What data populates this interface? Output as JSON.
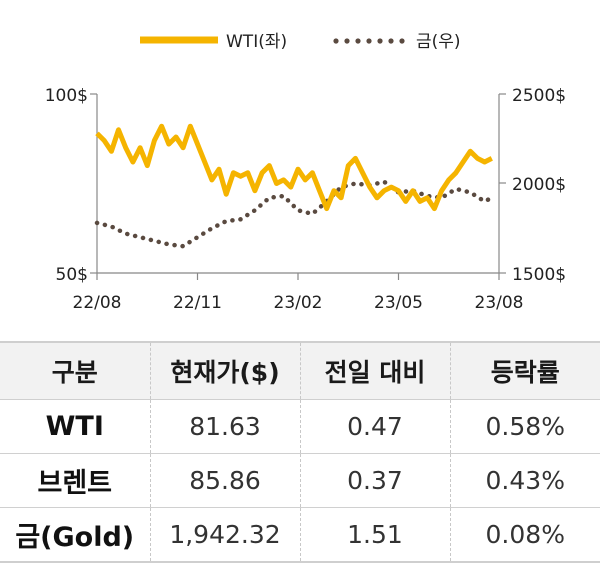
{
  "chart_data": {
    "type": "line",
    "legend": [
      "WTI(좌)",
      "금(우)"
    ],
    "x_ticks": [
      "22/08",
      "22/11",
      "23/02",
      "23/05",
      "23/08"
    ],
    "y_left": {
      "ticks": [
        "100$",
        "50$"
      ],
      "range": [
        50,
        100
      ]
    },
    "y_right": {
      "ticks": [
        "2500$",
        "2000$",
        "1500$"
      ],
      "range": [
        1500,
        2500
      ]
    },
    "colors": {
      "wti": "#f5b400",
      "gold": "#5a4a40"
    },
    "series": [
      {
        "name": "WTI(좌)",
        "axis": "left",
        "x": [
          "2022-08-01",
          "2022-08-08",
          "2022-08-15",
          "2022-08-22",
          "2022-08-29",
          "2022-09-05",
          "2022-09-12",
          "2022-09-19",
          "2022-09-26",
          "2022-10-03",
          "2022-10-10",
          "2022-10-17",
          "2022-10-24",
          "2022-10-31",
          "2022-11-07",
          "2022-11-14",
          "2022-11-21",
          "2022-11-28",
          "2022-12-05",
          "2022-12-12",
          "2022-12-19",
          "2022-12-26",
          "2023-01-02",
          "2023-01-09",
          "2023-01-16",
          "2023-01-23",
          "2023-01-30",
          "2023-02-06",
          "2023-02-13",
          "2023-02-20",
          "2023-02-27",
          "2023-03-06",
          "2023-03-13",
          "2023-03-20",
          "2023-03-27",
          "2023-04-03",
          "2023-04-10",
          "2023-04-17",
          "2023-04-24",
          "2023-05-01",
          "2023-05-08",
          "2023-05-15",
          "2023-05-22",
          "2023-05-29",
          "2023-06-05",
          "2023-06-12",
          "2023-06-19",
          "2023-06-26",
          "2023-07-03",
          "2023-07-10",
          "2023-07-17",
          "2023-07-24",
          "2023-07-31",
          "2023-08-07",
          "2023-08-14",
          "2023-08-21"
        ],
        "values": [
          89,
          87,
          84,
          90,
          85,
          81,
          85,
          80,
          87,
          91,
          86,
          88,
          85,
          91,
          86,
          81,
          76,
          79,
          72,
          78,
          77,
          78,
          73,
          78,
          80,
          75,
          76,
          74,
          79,
          76,
          78,
          73,
          68,
          73,
          71,
          80,
          82,
          78,
          74,
          71,
          73,
          74,
          73,
          70,
          73,
          70,
          71,
          68,
          73,
          76,
          78,
          81,
          84,
          82,
          81,
          82
        ]
      },
      {
        "name": "금(우)",
        "axis": "right",
        "x": [
          "2022-08-01",
          "2022-08-15",
          "2022-08-29",
          "2022-09-12",
          "2022-09-26",
          "2022-10-10",
          "2022-10-24",
          "2022-11-07",
          "2022-11-21",
          "2022-12-05",
          "2022-12-19",
          "2023-01-02",
          "2023-01-16",
          "2023-01-30",
          "2023-02-13",
          "2023-02-27",
          "2023-03-13",
          "2023-03-27",
          "2023-04-10",
          "2023-04-24",
          "2023-05-08",
          "2023-05-22",
          "2023-06-05",
          "2023-06-19",
          "2023-07-03",
          "2023-07-17",
          "2023-07-31",
          "2023-08-14",
          "2023-08-21"
        ],
        "values": [
          1780,
          1760,
          1720,
          1700,
          1680,
          1660,
          1650,
          1700,
          1750,
          1790,
          1800,
          1850,
          1920,
          1930,
          1850,
          1830,
          1900,
          1980,
          2000,
          1990,
          2010,
          1950,
          1960,
          1930,
          1920,
          1970,
          1950,
          1900,
          1920
        ]
      }
    ]
  },
  "table": {
    "headers": [
      "구분",
      "현재가($)",
      "전일 대비",
      "등락률"
    ],
    "rows": [
      [
        "WTI",
        "81.63",
        "0.47",
        "0.58%"
      ],
      [
        "브렌트",
        "85.86",
        "0.37",
        "0.43%"
      ],
      [
        "금(Gold)",
        "1,942.32",
        "1.51",
        "0.08%"
      ]
    ]
  }
}
